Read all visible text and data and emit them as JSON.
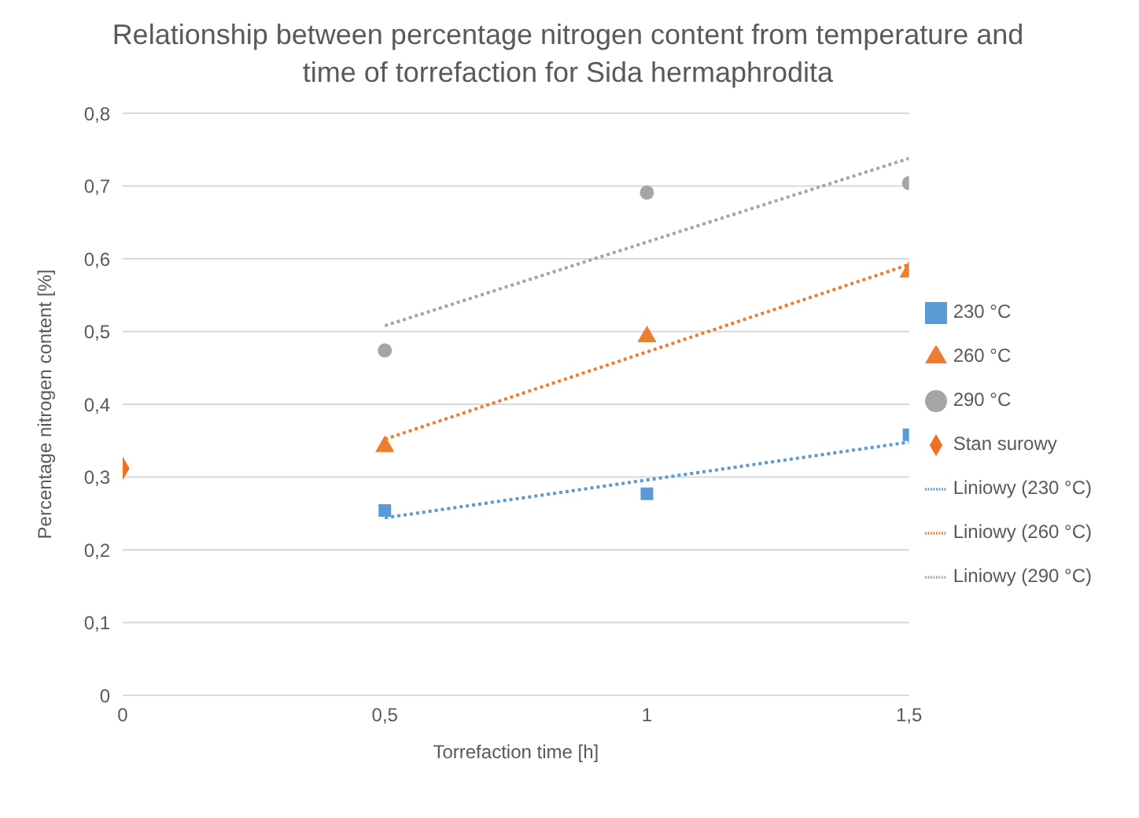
{
  "chart_data": {
    "type": "scatter",
    "title": "Relationship between percentage nitrogen content from temperature and time of torrefaction for Sida hermaphrodita",
    "xlabel": "Torrefaction time [h]",
    "ylabel": "Percentage nitrogen content [%]",
    "xlim": [
      0,
      1.5
    ],
    "xticks": [
      0,
      {
        "value": 0.5,
        "label": "0,5"
      },
      1,
      {
        "value": 1.5,
        "label": "1,5"
      }
    ],
    "ylim": [
      0,
      0.8
    ],
    "yticks": [
      0,
      {
        "value": 0.1,
        "label": "0,1"
      },
      {
        "value": 0.2,
        "label": "0,2"
      },
      {
        "value": 0.3,
        "label": "0,3"
      },
      {
        "value": 0.4,
        "label": "0,4"
      },
      {
        "value": 0.5,
        "label": "0,5"
      },
      {
        "value": 0.6,
        "label": "0,6"
      },
      {
        "value": 0.7,
        "label": "0,7"
      },
      {
        "value": 0.8,
        "label": "0,8"
      }
    ],
    "grid": "y",
    "legend": "right",
    "series": [
      {
        "name": "230 °C",
        "type": "scatter",
        "marker": "square",
        "color": "#5b9bd5",
        "x": [
          0.5,
          1,
          1.5
        ],
        "values": [
          0.254,
          0.277,
          0.358
        ]
      },
      {
        "name": "260 °C",
        "type": "scatter",
        "marker": "triangle",
        "color": "#ed7d31",
        "x": [
          0.5,
          1,
          1.5
        ],
        "values": [
          0.342,
          0.493,
          0.582
        ]
      },
      {
        "name": "290 °C",
        "type": "scatter",
        "marker": "circle",
        "color": "#a5a5a5",
        "x": [
          0.5,
          1,
          1.5
        ],
        "values": [
          0.474,
          0.691,
          0.704
        ]
      },
      {
        "name": "Stan surowy",
        "type": "scatter",
        "marker": "diamond",
        "color": "#f07020",
        "x": [
          0
        ],
        "values": [
          0.312
        ]
      },
      {
        "name": "Liniowy (230 °C)",
        "type": "line",
        "line_style": "dotted",
        "marker": "none",
        "color": "#5b9bd5",
        "x": [
          0.5,
          1.5
        ],
        "values": [
          0.244,
          0.348
        ]
      },
      {
        "name": "Liniowy (260 °C)",
        "type": "line",
        "line_style": "dotted",
        "marker": "none",
        "color": "#ed7d31",
        "x": [
          0.5,
          1.5
        ],
        "values": [
          0.352,
          0.592
        ]
      },
      {
        "name": "Liniowy (290 °C)",
        "type": "line",
        "line_style": "dotted",
        "marker": "none",
        "color": "#a5a5a5",
        "x": [
          0.5,
          1.5
        ],
        "values": [
          0.508,
          0.738
        ]
      }
    ]
  }
}
